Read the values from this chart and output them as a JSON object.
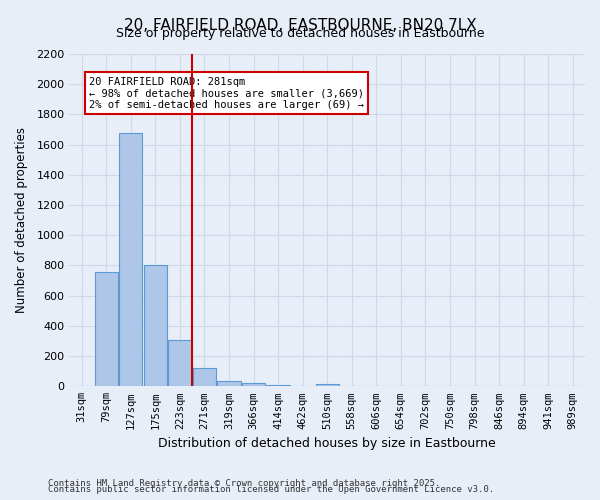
{
  "title_line1": "20, FAIRFIELD ROAD, EASTBOURNE, BN20 7LX",
  "title_line2": "Size of property relative to detached houses in Eastbourne",
  "xlabel": "Distribution of detached houses by size in Eastbourne",
  "ylabel": "Number of detached properties",
  "categories": [
    "31sqm",
    "79sqm",
    "127sqm",
    "175sqm",
    "223sqm",
    "271sqm",
    "319sqm",
    "366sqm",
    "414sqm",
    "462sqm",
    "510sqm",
    "558sqm",
    "606sqm",
    "654sqm",
    "702sqm",
    "750sqm",
    "798sqm",
    "846sqm",
    "894sqm",
    "941sqm",
    "989sqm"
  ],
  "values": [
    0,
    760,
    1680,
    800,
    305,
    120,
    35,
    25,
    10,
    5,
    18,
    0,
    0,
    0,
    0,
    0,
    0,
    0,
    0,
    0,
    0
  ],
  "bar_color": "#aec6e8",
  "bar_edgecolor": "#5b9bd5",
  "red_line_index": 5,
  "ylim": [
    0,
    2200
  ],
  "yticks": [
    0,
    200,
    400,
    600,
    800,
    1000,
    1200,
    1400,
    1600,
    1800,
    2000,
    2200
  ],
  "annotation_text": "20 FAIRFIELD ROAD: 281sqm\n← 98% of detached houses are smaller (3,669)\n2% of semi-detached houses are larger (69) →",
  "annotation_box_color": "#ffffff",
  "annotation_box_edgecolor": "#cc0000",
  "grid_color": "#d0d8e8",
  "background_color": "#e8eef8",
  "footer_line1": "Contains HM Land Registry data © Crown copyright and database right 2025.",
  "footer_line2": "Contains public sector information licensed under the Open Government Licence v3.0."
}
